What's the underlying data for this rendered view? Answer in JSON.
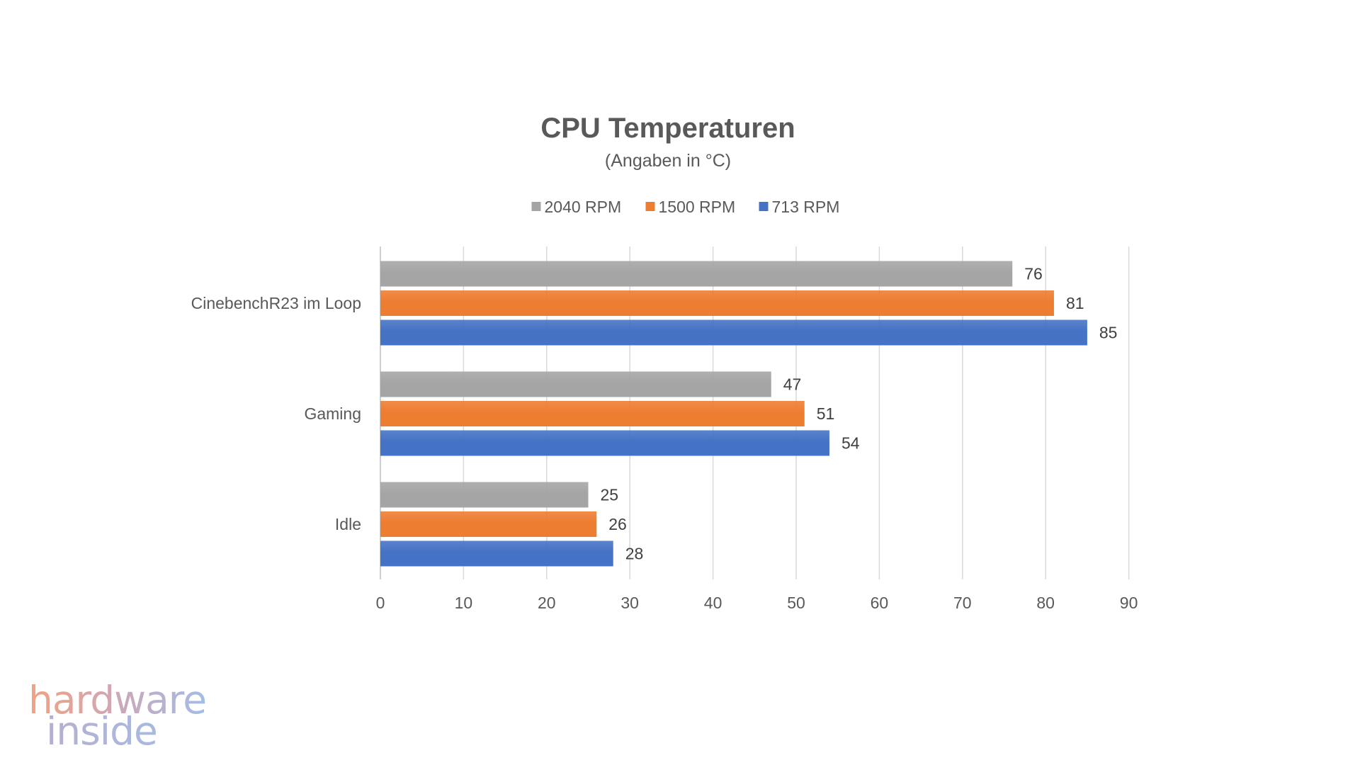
{
  "chart_data": {
    "type": "bar",
    "orientation": "horizontal",
    "title": "CPU Temperaturen",
    "subtitle": "(Angaben in °C)",
    "categories": [
      "CinebenchR23 im Loop",
      "Gaming",
      "Idle"
    ],
    "series": [
      {
        "name": "2040 RPM",
        "color": "#a5a5a5",
        "values": [
          76,
          47,
          25
        ]
      },
      {
        "name": "1500 RPM",
        "color": "#ed7d31",
        "values": [
          81,
          51,
          26
        ]
      },
      {
        "name": "713 RPM",
        "color": "#4472c4",
        "values": [
          85,
          54,
          28
        ]
      }
    ],
    "xlim": [
      0,
      90
    ],
    "xticks": [
      0,
      10,
      20,
      30,
      40,
      50,
      60,
      70,
      80,
      90
    ],
    "xlabel": "",
    "ylabel": "",
    "grid": true,
    "legend": "top-center",
    "data_labels": true
  },
  "watermark": {
    "line1": "hardware",
    "line2": "inside"
  }
}
